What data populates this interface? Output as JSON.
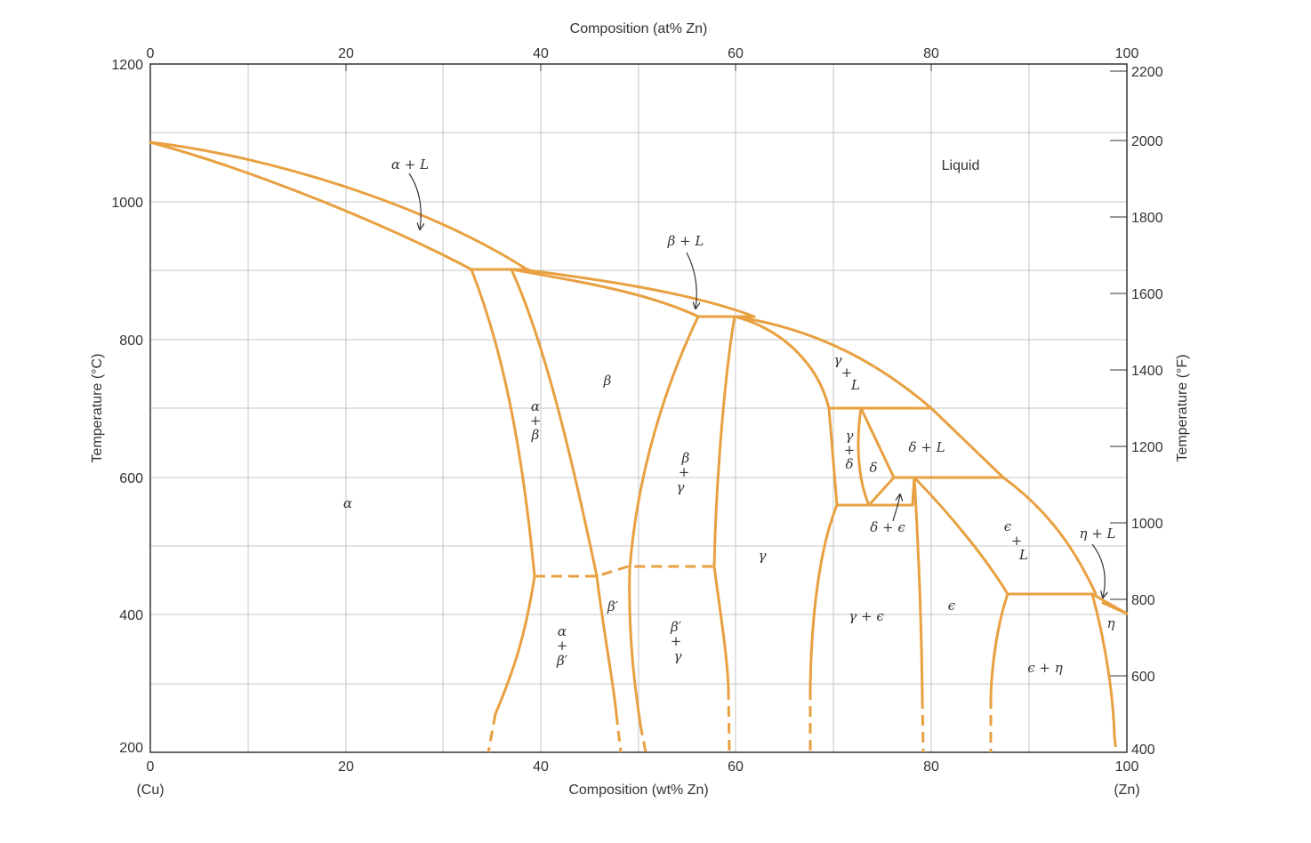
{
  "colors": {
    "phase_line": "#E8A040",
    "grid": "#bfbfbf",
    "frame": "#333333",
    "text": "#333333"
  },
  "axes": {
    "top_label": "Composition (at% Zn)",
    "bottom_label": "Composition (wt% Zn)",
    "left_label": "Temperature (°C)",
    "right_label": "Temperature (°F)",
    "bottom_ticks": [
      "0",
      "20",
      "40",
      "60",
      "80",
      "100"
    ],
    "top_ticks": [
      "0",
      "20",
      "40",
      "60",
      "80",
      "100"
    ],
    "left_ticks": [
      "200",
      "400",
      "600",
      "800",
      "1000",
      "1200"
    ],
    "right_ticks": [
      "400",
      "600",
      "800",
      "1000",
      "1200",
      "1400",
      "1600",
      "1800",
      "2000",
      "2200"
    ],
    "left_end_label": "(Cu)",
    "right_end_label": "(Zn)"
  },
  "phases": {
    "alpha": "α",
    "alpha_l": "α + L",
    "beta_l": "β + L",
    "liquid": "Liquid",
    "beta": "β",
    "alpha_beta": [
      "α",
      "+",
      "β"
    ],
    "beta_gamma": [
      "β",
      "+",
      "γ"
    ],
    "gamma": "γ",
    "gamma_l": [
      "γ",
      "+",
      "L"
    ],
    "gamma_delta": [
      "γ",
      "+",
      "δ"
    ],
    "delta": "δ",
    "delta_l": "δ + L",
    "delta_eps": "δ + ϵ",
    "eps_l": [
      "ϵ",
      "+",
      "L"
    ],
    "eta_l": "η + L",
    "beta_prime": "β′",
    "alpha_betap": [
      "α",
      "+",
      "β′"
    ],
    "betap_gamma": [
      "β′",
      "+",
      "γ"
    ],
    "gamma_eps": "γ + ϵ",
    "eps": "ϵ",
    "eps_eta": "ϵ + η",
    "eta": "η"
  }
}
